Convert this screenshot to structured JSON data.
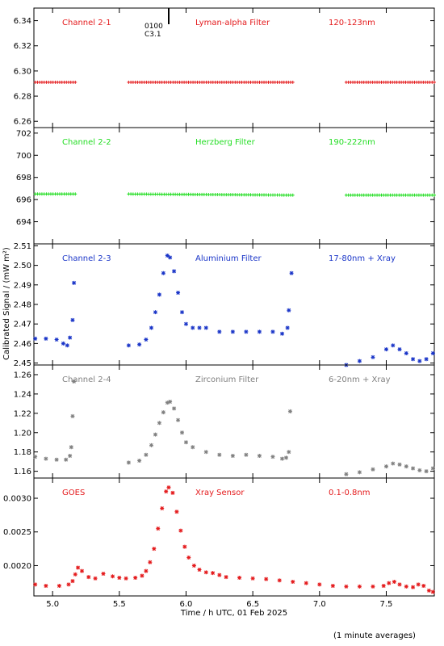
{
  "figure": {
    "ylabel": "Calibrated Signal / (mW m²)",
    "xlabel": "Time / h UTC, 01 Feb 2025",
    "footnote": "(1 minute averages)",
    "marker_note": [
      "0100",
      "C3.1"
    ],
    "marker_time": 5.87
  },
  "chart_data": [
    {
      "type": "scatter",
      "title": "Channel 2-1",
      "filter": "Lyman-alpha Filter",
      "band": "120-123nm",
      "color": "#e41a1c",
      "xlim": [
        4.86,
        7.86
      ],
      "ylim": [
        6.255,
        6.35
      ],
      "yticks": [
        6.26,
        6.28,
        6.3,
        6.32,
        6.34
      ],
      "ytick_labels": [
        "6.26",
        "6.28",
        "6.30",
        "6.32",
        "6.34"
      ],
      "marker": "plus",
      "segments": [
        {
          "x_start": 4.87,
          "x_end": 5.17,
          "y": [
            6.291,
            6.291
          ]
        },
        {
          "x_start": 5.57,
          "x_end": 6.8,
          "y": [
            6.291,
            6.291
          ]
        },
        {
          "x_start": 7.2,
          "x_end": 7.86,
          "y": [
            6.291,
            6.291
          ]
        }
      ]
    },
    {
      "type": "scatter",
      "title": "Channel 2-2",
      "filter": "Herzberg Filter",
      "band": "190-222nm",
      "color": "#22dd22",
      "xlim": [
        4.86,
        7.86
      ],
      "ylim": [
        692.0,
        702.5
      ],
      "yticks": [
        694,
        696,
        698,
        700,
        702
      ],
      "ytick_labels": [
        "694",
        "696",
        "698",
        "700",
        "702"
      ],
      "marker": "plus",
      "segments": [
        {
          "x_start": 4.87,
          "x_end": 5.17,
          "y": [
            696.5,
            696.5
          ]
        },
        {
          "x_start": 5.57,
          "x_end": 6.8,
          "y": [
            696.5,
            696.4
          ]
        },
        {
          "x_start": 7.2,
          "x_end": 7.86,
          "y": [
            696.4,
            696.4
          ]
        }
      ]
    },
    {
      "type": "scatter",
      "title": "Channel 2-3",
      "filter": "Aluminium Filter",
      "band": "17-80nm + Xray",
      "color": "#1a35c8",
      "xlim": [
        4.86,
        7.86
      ],
      "ylim": [
        2.449,
        2.511
      ],
      "yticks": [
        2.45,
        2.46,
        2.47,
        2.48,
        2.49,
        2.5,
        2.51
      ],
      "ytick_labels": [
        "2.45",
        "2.46",
        "2.47",
        "2.48",
        "2.49",
        "2.50",
        "2.51"
      ],
      "marker": "star",
      "points": [
        [
          4.87,
          2.4625
        ],
        [
          4.95,
          2.4625
        ],
        [
          5.03,
          2.462
        ],
        [
          5.08,
          2.46
        ],
        [
          5.11,
          2.459
        ],
        [
          5.13,
          2.463
        ],
        [
          5.15,
          2.472
        ],
        [
          5.16,
          2.491
        ],
        [
          5.57,
          2.459
        ],
        [
          5.65,
          2.4595
        ],
        [
          5.7,
          2.462
        ],
        [
          5.74,
          2.468
        ],
        [
          5.77,
          2.476
        ],
        [
          5.8,
          2.485
        ],
        [
          5.83,
          2.496
        ],
        [
          5.86,
          2.505
        ],
        [
          5.88,
          2.504
        ],
        [
          5.91,
          2.497
        ],
        [
          5.94,
          2.486
        ],
        [
          5.97,
          2.476
        ],
        [
          6.0,
          2.47
        ],
        [
          6.05,
          2.468
        ],
        [
          6.1,
          2.468
        ],
        [
          6.15,
          2.468
        ],
        [
          6.25,
          2.466
        ],
        [
          6.35,
          2.466
        ],
        [
          6.45,
          2.466
        ],
        [
          6.55,
          2.466
        ],
        [
          6.65,
          2.466
        ],
        [
          6.72,
          2.465
        ],
        [
          6.76,
          2.468
        ],
        [
          6.77,
          2.477
        ],
        [
          6.79,
          2.496
        ],
        [
          7.2,
          2.449
        ],
        [
          7.3,
          2.451
        ],
        [
          7.4,
          2.453
        ],
        [
          7.5,
          2.457
        ],
        [
          7.55,
          2.459
        ],
        [
          7.6,
          2.457
        ],
        [
          7.65,
          2.455
        ],
        [
          7.7,
          2.452
        ],
        [
          7.75,
          2.451
        ],
        [
          7.8,
          2.452
        ],
        [
          7.85,
          2.455
        ]
      ]
    },
    {
      "type": "scatter",
      "title": "Channel 2-4",
      "filter": "Zirconium Filter",
      "band": "6-20nm + Xray",
      "color": "#808080",
      "xlim": [
        4.86,
        7.86
      ],
      "ylim": [
        1.153,
        1.27
      ],
      "yticks": [
        1.16,
        1.18,
        1.2,
        1.22,
        1.24,
        1.26
      ],
      "ytick_labels": [
        "1.16",
        "1.18",
        "1.20",
        "1.22",
        "1.24",
        "1.26"
      ],
      "marker": "star",
      "points": [
        [
          4.87,
          1.175
        ],
        [
          4.95,
          1.173
        ],
        [
          5.03,
          1.172
        ],
        [
          5.1,
          1.172
        ],
        [
          5.13,
          1.176
        ],
        [
          5.14,
          1.185
        ],
        [
          5.15,
          1.217
        ],
        [
          5.16,
          1.253
        ],
        [
          5.57,
          1.169
        ],
        [
          5.65,
          1.171
        ],
        [
          5.7,
          1.177
        ],
        [
          5.74,
          1.187
        ],
        [
          5.77,
          1.198
        ],
        [
          5.8,
          1.21
        ],
        [
          5.83,
          1.221
        ],
        [
          5.86,
          1.231
        ],
        [
          5.88,
          1.232
        ],
        [
          5.91,
          1.225
        ],
        [
          5.94,
          1.213
        ],
        [
          5.97,
          1.2
        ],
        [
          6.0,
          1.19
        ],
        [
          6.05,
          1.185
        ],
        [
          6.15,
          1.18
        ],
        [
          6.25,
          1.177
        ],
        [
          6.35,
          1.176
        ],
        [
          6.45,
          1.177
        ],
        [
          6.55,
          1.176
        ],
        [
          6.65,
          1.175
        ],
        [
          6.72,
          1.173
        ],
        [
          6.75,
          1.174
        ],
        [
          6.77,
          1.18
        ],
        [
          6.78,
          1.222
        ],
        [
          7.2,
          1.157
        ],
        [
          7.3,
          1.159
        ],
        [
          7.4,
          1.162
        ],
        [
          7.5,
          1.165
        ],
        [
          7.55,
          1.168
        ],
        [
          7.6,
          1.167
        ],
        [
          7.65,
          1.165
        ],
        [
          7.7,
          1.163
        ],
        [
          7.75,
          1.161
        ],
        [
          7.8,
          1.16
        ],
        [
          7.85,
          1.163
        ]
      ]
    },
    {
      "type": "scatter",
      "title": "GOES",
      "filter": "Xray Sensor",
      "band": "0.1-0.8nm",
      "color": "#e41a1c",
      "xlim": [
        4.86,
        7.86
      ],
      "ylim": [
        0.00155,
        0.0033
      ],
      "yticks": [
        0.002,
        0.0025,
        0.003
      ],
      "ytick_labels": [
        "0.0020",
        "0.0025",
        "0.0030"
      ],
      "xticks": [
        5.0,
        5.5,
        6.0,
        6.5,
        7.0,
        7.5
      ],
      "xtick_labels": [
        "5.0",
        "5.5",
        "6.0",
        "6.5",
        "7.0",
        "7.5"
      ],
      "marker": "star",
      "points": [
        [
          4.87,
          0.00172
        ],
        [
          4.95,
          0.0017
        ],
        [
          5.05,
          0.0017
        ],
        [
          5.12,
          0.00172
        ],
        [
          5.15,
          0.00177
        ],
        [
          5.17,
          0.00187
        ],
        [
          5.19,
          0.00197
        ],
        [
          5.22,
          0.00192
        ],
        [
          5.27,
          0.00183
        ],
        [
          5.32,
          0.00181
        ],
        [
          5.38,
          0.00188
        ],
        [
          5.45,
          0.00184
        ],
        [
          5.5,
          0.00182
        ],
        [
          5.55,
          0.00181
        ],
        [
          5.62,
          0.00182
        ],
        [
          5.67,
          0.00185
        ],
        [
          5.7,
          0.00192
        ],
        [
          5.73,
          0.00205
        ],
        [
          5.76,
          0.00225
        ],
        [
          5.79,
          0.00255
        ],
        [
          5.82,
          0.00285
        ],
        [
          5.85,
          0.0031
        ],
        [
          5.87,
          0.00316
        ],
        [
          5.9,
          0.00308
        ],
        [
          5.93,
          0.0028
        ],
        [
          5.96,
          0.00252
        ],
        [
          5.99,
          0.00228
        ],
        [
          6.02,
          0.00212
        ],
        [
          6.06,
          0.002
        ],
        [
          6.1,
          0.00194
        ],
        [
          6.15,
          0.0019
        ],
        [
          6.2,
          0.00189
        ],
        [
          6.25,
          0.00186
        ],
        [
          6.3,
          0.00183
        ],
        [
          6.4,
          0.00182
        ],
        [
          6.5,
          0.00181
        ],
        [
          6.6,
          0.0018
        ],
        [
          6.7,
          0.00178
        ],
        [
          6.8,
          0.00176
        ],
        [
          6.9,
          0.00174
        ],
        [
          7.0,
          0.00172
        ],
        [
          7.1,
          0.0017
        ],
        [
          7.2,
          0.00169
        ],
        [
          7.3,
          0.00169
        ],
        [
          7.4,
          0.00169
        ],
        [
          7.48,
          0.0017
        ],
        [
          7.52,
          0.00174
        ],
        [
          7.56,
          0.00176
        ],
        [
          7.6,
          0.00172
        ],
        [
          7.65,
          0.00169
        ],
        [
          7.7,
          0.00168
        ],
        [
          7.74,
          0.00172
        ],
        [
          7.78,
          0.0017
        ],
        [
          7.82,
          0.00163
        ],
        [
          7.85,
          0.00161
        ]
      ]
    }
  ]
}
